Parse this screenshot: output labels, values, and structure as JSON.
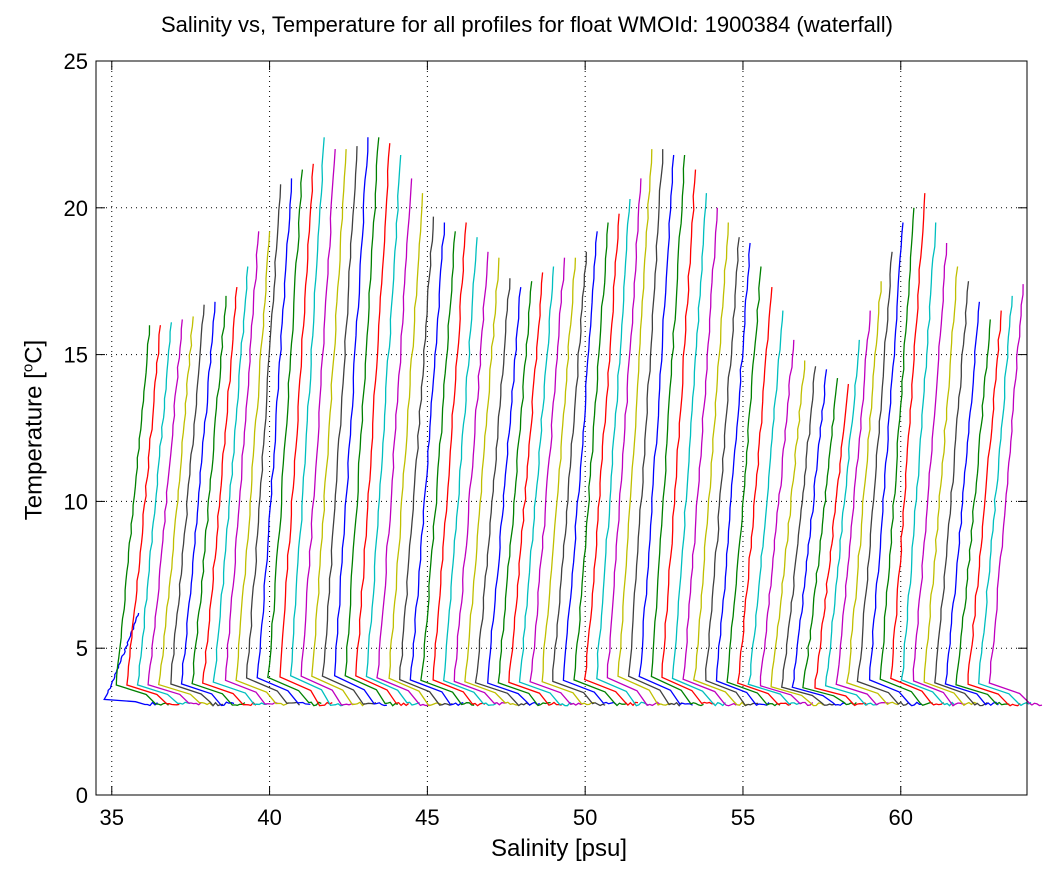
{
  "chart_data": {
    "type": "line",
    "title": "Salinity vs, Temperature for all profiles for float WMOId: 1900384 (waterfall)",
    "xlabel": "Salinity [psu]",
    "ylabel_main": "Temperature [",
    "ylabel_sup": "o",
    "ylabel_end": "C]",
    "xlim": [
      34.5,
      64
    ],
    "ylim": [
      0,
      25
    ],
    "xticks": [
      "35",
      "40",
      "45",
      "50",
      "55",
      "60"
    ],
    "xtick_values": [
      35,
      40,
      45,
      50,
      55,
      60
    ],
    "yticks": [
      "0",
      "5",
      "10",
      "15",
      "20",
      "25"
    ],
    "ytick_values": [
      0,
      5,
      10,
      15,
      20,
      25
    ],
    "grid": true,
    "profile_count": 82,
    "first_profile_salinity": 34.7,
    "profile_spacing": 0.346,
    "bottom_temperature": 3.1,
    "profile_top_temperature": [
      6.2,
      16.0,
      16.0,
      16.1,
      16.2,
      16.3,
      16.7,
      16.8,
      17.0,
      17.3,
      18.0,
      19.2,
      19.2,
      20.8,
      21.0,
      21.3,
      21.5,
      22.4,
      22.0,
      22.0,
      22.1,
      22.4,
      22.4,
      22.2,
      21.8,
      21.0,
      20.5,
      19.7,
      19.5,
      19.2,
      19.5,
      19.0,
      18.5,
      18.3,
      17.6,
      17.3,
      17.5,
      17.8,
      18.0,
      18.3,
      18.3,
      18.5,
      19.2,
      19.5,
      19.8,
      20.3,
      21.0,
      22.0,
      22.0,
      21.8,
      21.8,
      21.3,
      20.5,
      20.0,
      19.5,
      19.0,
      18.8,
      18.0,
      17.3,
      16.5,
      15.5,
      14.8,
      14.6,
      14.5,
      14.2,
      14.0,
      15.5,
      16.5,
      17.5,
      18.5,
      19.5,
      20.0,
      20.5,
      19.5,
      18.8,
      18.0,
      17.5,
      16.8,
      16.2,
      16.5,
      17.0,
      17.4
    ],
    "colors": [
      "#0000ff",
      "#008000",
      "#ff0000",
      "#00bfbf",
      "#bf00bf",
      "#bfbf00",
      "#404040"
    ]
  }
}
